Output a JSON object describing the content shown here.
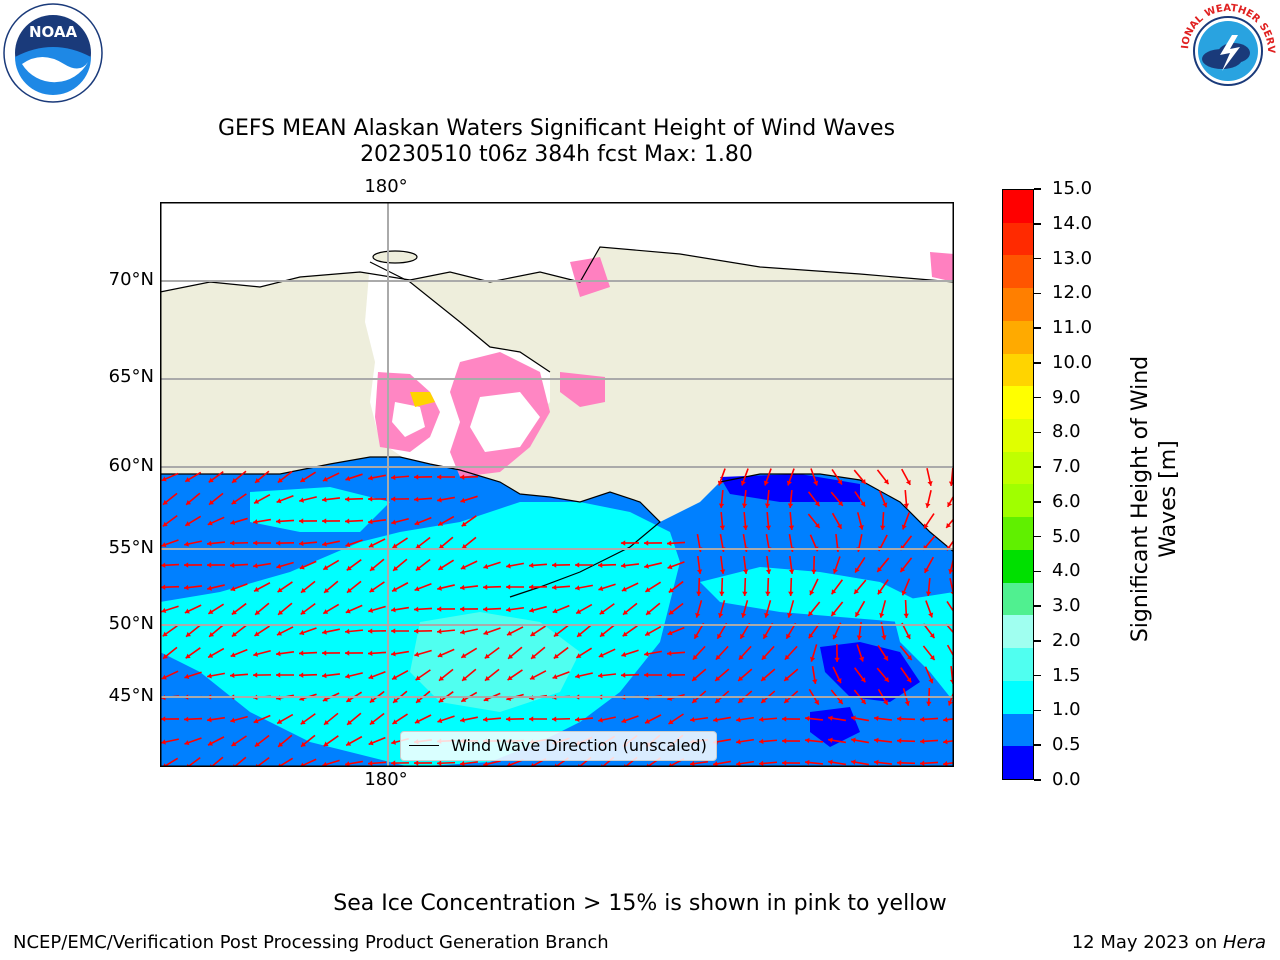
{
  "title": {
    "line1": "GEFS MEAN Alaskan Waters Significant Height of Wind Waves",
    "line2": "20230510 t06z 384h fcst   Max: 1.80"
  },
  "axes": {
    "lon_top": "180°",
    "lon_bottom": "180°",
    "lat_labels": [
      "70°N",
      "65°N",
      "60°N",
      "55°N",
      "50°N",
      "45°N"
    ]
  },
  "legend": {
    "label": "Wind Wave Direction (unscaled)"
  },
  "colorbar": {
    "title_line1": "Significant Height of Wind",
    "title_line2": "Waves [m]",
    "ticks": [
      "15.0",
      "14.0",
      "13.0",
      "12.0",
      "11.0",
      "10.0",
      "9.0",
      "8.0",
      "7.0",
      "6.0",
      "5.0",
      "4.0",
      "3.0",
      "2.0",
      "1.5",
      "1.0",
      "0.5",
      "0.0"
    ],
    "colors_top_to_bottom": [
      "#ff0000",
      "#ff2a00",
      "#ff5500",
      "#ff7f00",
      "#ffaa00",
      "#ffd400",
      "#ffff00",
      "#e0ff00",
      "#c0ff00",
      "#a0ff00",
      "#60f000",
      "#00e000",
      "#50f090",
      "#a0fff0",
      "#50fff0",
      "#00ffff",
      "#0080ff",
      "#0000ff"
    ]
  },
  "ice_note": "Sea Ice Concentration > 15% is shown in pink to yellow",
  "footer": {
    "left": "NCEP/EMC/Verification Post Processing Product Generation Branch",
    "right_prefix": "12 May 2023 on ",
    "right_machine": "Hera"
  },
  "logos": {
    "left": "NOAA",
    "right": "NATIONAL WEATHER SERVICE"
  },
  "map_colors": {
    "land": "#eeeedc",
    "sea_low": "#0080ff",
    "sea_mid": "#00ffff",
    "arrows": "#ff0000"
  }
}
